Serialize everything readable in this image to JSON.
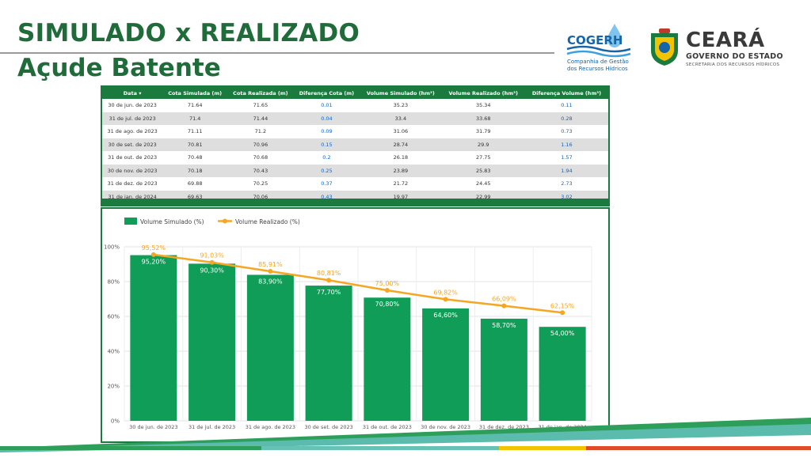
{
  "header": {
    "title_line1": "SIMULADO x REALIZADO",
    "title_line2": "Açude Batente"
  },
  "logos": {
    "cogerh_name": "COGERH",
    "cogerh_sub1": "Companhia de Gestão",
    "cogerh_sub2": "dos Recursos Hídricos",
    "ceara_name": "CEARÁ",
    "ceara_gov": "GOVERNO DO ESTADO",
    "ceara_sec": "SECRETARIA DOS RECURSOS HÍDRICOS"
  },
  "table": {
    "columns": [
      "Data ▾",
      "Cota Simulada (m)",
      "Cota Realizada (m)",
      "Diferença Cota (m)",
      "Volume Simulado (hm³)",
      "Volume Realizado (hm³)",
      "Diferença Volume (hm³)"
    ],
    "rows": [
      [
        "30 de jun. de 2023",
        "71.64",
        "71.65",
        "0.01",
        "35.23",
        "35.34",
        "0.11"
      ],
      [
        "31 de jul. de 2023",
        "71.4",
        "71.44",
        "0.04",
        "33.4",
        "33.68",
        "0.28"
      ],
      [
        "31 de ago. de 2023",
        "71.11",
        "71.2",
        "0.09",
        "31.06",
        "31.79",
        "0.73"
      ],
      [
        "30 de set. de 2023",
        "70.81",
        "70.96",
        "0.15",
        "28.74",
        "29.9",
        "1.16"
      ],
      [
        "31 de out. de 2023",
        "70.48",
        "70.68",
        "0.2",
        "26.18",
        "27.75",
        "1.57"
      ],
      [
        "30 de nov. de 2023",
        "70.18",
        "70.43",
        "0.25",
        "23.89",
        "25.83",
        "1.94"
      ],
      [
        "31 de dez. de 2023",
        "69.88",
        "70.25",
        "0.37",
        "21.72",
        "24.45",
        "2.73"
      ],
      [
        "31 de jan. de 2024",
        "69.63",
        "70.06",
        "0.43",
        "19.97",
        "22.99",
        "3.02"
      ]
    ]
  },
  "chart_data": {
    "type": "bar",
    "categories": [
      "30 de jun. de 2023",
      "31 de jul. de 2023",
      "31 de ago. de 2023",
      "30 de set. de 2023",
      "31 de out. de 2023",
      "30 de nov. de 2023",
      "31 de dez. de 2023",
      "31 de jan. de 2024"
    ],
    "series": [
      {
        "name": "Volume Simulado (%)",
        "type": "bar",
        "color": "#0f9d58",
        "values": [
          95.2,
          90.3,
          83.9,
          77.7,
          70.8,
          64.6,
          58.7,
          54.0
        ],
        "labels": [
          "95,20%",
          "90,30%",
          "83,90%",
          "77,70%",
          "70,80%",
          "64,60%",
          "58,70%",
          "54,00%"
        ]
      },
      {
        "name": "Volume Realizado (%)",
        "type": "line",
        "color": "#f5a623",
        "values": [
          95.52,
          91.03,
          85.91,
          80.81,
          75.0,
          69.82,
          66.09,
          62.15
        ],
        "labels": [
          "95,52%",
          "91,03%",
          "85,91%",
          "80,81%",
          "75,00%",
          "69,82%",
          "66,09%",
          "62,15%"
        ]
      }
    ],
    "ylim": [
      0,
      100
    ],
    "yticks": [
      "0%",
      "20%",
      "40%",
      "60%",
      "80%",
      "100%"
    ],
    "ytick_values": [
      0,
      20,
      40,
      60,
      80,
      100
    ],
    "grid": true,
    "legend": "top-left"
  }
}
